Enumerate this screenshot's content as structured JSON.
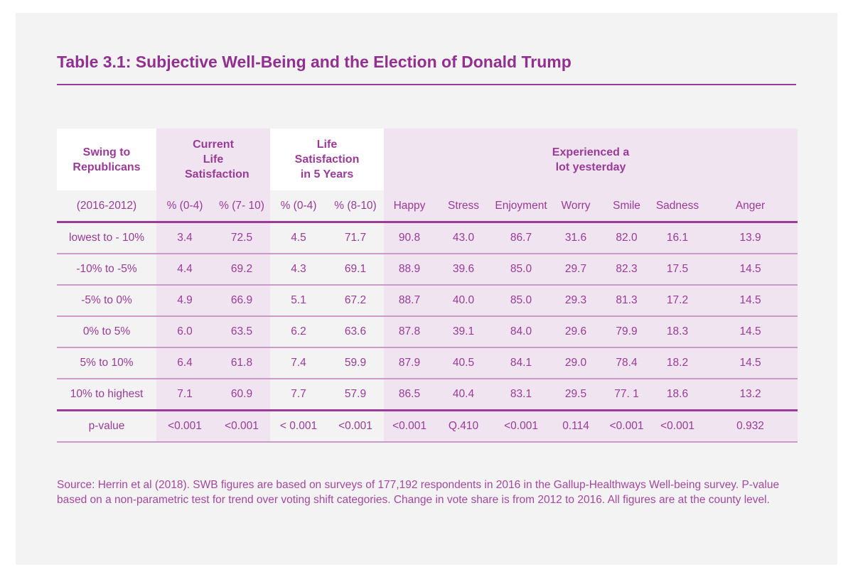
{
  "title": "Table 3.1: Subjective Well-Being and the Election of Donald Trump",
  "header_groups": [
    "Swing to Republicans",
    "Current Life Satisfaction",
    "Life Satisfaction in 5 Years",
    "Experienced a lot yesterday"
  ],
  "subheaders": [
    "(2016-2012)",
    "% (0-4)",
    "% (7- 10)",
    "% (0-4)",
    "% (8-10)",
    "Happy",
    "Stress",
    "Enjoyment",
    "Worry",
    "Smile",
    "Sadness",
    "Anger"
  ],
  "rows": [
    [
      "lowest to - 10%",
      "3.4",
      "72.5",
      "4.5",
      "71.7",
      "90.8",
      "43.0",
      "86.7",
      "31.6",
      "82.0",
      "16.1",
      "13.9"
    ],
    [
      "-10% to -5%",
      "4.4",
      "69.2",
      "4.3",
      "69.1",
      "88.9",
      "39.6",
      "85.0",
      "29.7",
      "82.3",
      "17.5",
      "14.5"
    ],
    [
      "-5% to 0%",
      "4.9",
      "66.9",
      "5.1",
      "67.2",
      "88.7",
      "40.0",
      "85.0",
      "29.3",
      "81.3",
      "17.2",
      "14.5"
    ],
    [
      "0% to 5%",
      "6.0",
      "63.5",
      "6.2",
      "63.6",
      "87.8",
      "39.1",
      "84.0",
      "29.6",
      "79.9",
      "18.3",
      "14.5"
    ],
    [
      "5% to 10%",
      "6.4",
      "61.8",
      "7.4",
      "59.9",
      "87.9",
      "40.5",
      "84.1",
      "29.0",
      "78.4",
      "18.2",
      "14.5"
    ],
    [
      "10% to highest",
      "7.1",
      "60.9",
      "7.7",
      "57.9",
      "86.5",
      "40.4",
      "83.1",
      "29.5",
      "77. 1",
      "18.6",
      "13.2"
    ]
  ],
  "pvalue_row": [
    "p-value",
    "<0.001",
    "<0.001",
    "< 0.001",
    "<0.001",
    "<0.001",
    "Q.410",
    "<0.001",
    "0.114",
    "<0.001",
    "<0.001",
    "0.932"
  ],
  "source": "Source: Herrin et al (2018). SWB figures are based on surveys of 177,192 respondents in 2016 in the Gallup-Healthways Well-being survey. P-value based on a non-parametric test for trend over voting shift categories. Change in vote share is from 2012 to 2016. All figures are at the county level.",
  "colors": {
    "accent": "#9a3b98",
    "panel": "#f3f3f3",
    "shade": "#f0e4f0"
  }
}
